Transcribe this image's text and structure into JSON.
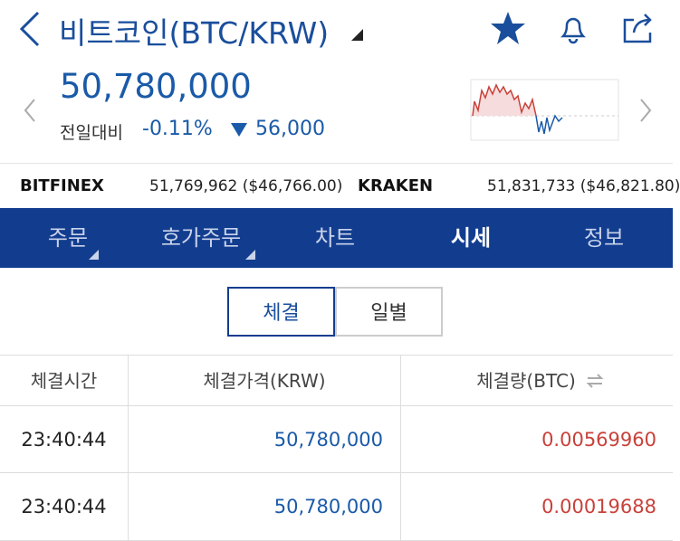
{
  "header": {
    "title": "비트코인(BTC/KRW)"
  },
  "quote": {
    "price": "50,780,000",
    "change_label": "전일대비",
    "change_percent": "-0.11%",
    "change_amount": "56,000"
  },
  "exchanges": [
    {
      "name": "BITFINEX",
      "value": "51,769,962 ($46,766.00)"
    },
    {
      "name": "KRAKEN",
      "value": "51,831,733 ($46,821.80)"
    }
  ],
  "tabs": {
    "items": [
      "주문",
      "호가주문",
      "차트",
      "시세",
      "정보"
    ],
    "selected": 3
  },
  "segments": {
    "items": [
      "체결",
      "일별"
    ],
    "selected": 0
  },
  "table": {
    "columns": [
      "체결시간",
      "체결가격(KRW)",
      "체결량(BTC)"
    ],
    "rows": [
      [
        "23:40:44",
        "50,780,000",
        "0.00569960"
      ],
      [
        "23:40:44",
        "50,780,000",
        "0.00019688"
      ]
    ]
  }
}
